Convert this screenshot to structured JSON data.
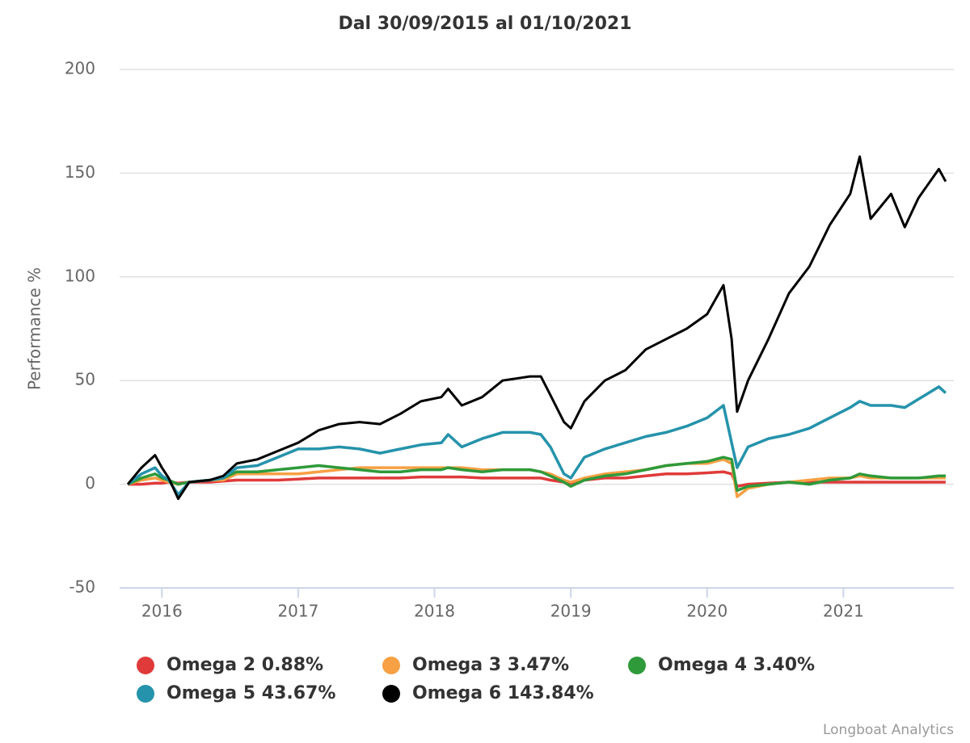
{
  "chart_data": {
    "type": "line",
    "title": "Dal 30/09/2015 al 01/10/2021",
    "y_label": "Performance %",
    "credit": "Longboat Analytics",
    "x": [
      2015.75,
      2015.85,
      2015.95,
      2016.0,
      2016.05,
      2016.12,
      2016.2,
      2016.35,
      2016.45,
      2016.55,
      2016.7,
      2016.85,
      2017.0,
      2017.15,
      2017.3,
      2017.45,
      2017.6,
      2017.75,
      2017.9,
      2018.05,
      2018.1,
      2018.2,
      2018.35,
      2018.5,
      2018.7,
      2018.78,
      2018.85,
      2018.95,
      2019.0,
      2019.1,
      2019.25,
      2019.4,
      2019.55,
      2019.7,
      2019.85,
      2020.0,
      2020.12,
      2020.18,
      2020.22,
      2020.3,
      2020.45,
      2020.6,
      2020.75,
      2020.9,
      2021.05,
      2021.12,
      2021.2,
      2021.35,
      2021.45,
      2021.55,
      2021.7,
      2021.75
    ],
    "series": [
      {
        "name": "Omega 2 0.88%",
        "color": "#e03a3a",
        "values": [
          0,
          0,
          0.5,
          0.5,
          1,
          0.5,
          1,
          1,
          1.5,
          2,
          2,
          2,
          2.5,
          3,
          3,
          3,
          3,
          3,
          3.5,
          3.5,
          3.5,
          3.5,
          3,
          3,
          3,
          3,
          2,
          1,
          0.5,
          2,
          3,
          3,
          4,
          5,
          5,
          5.5,
          6,
          5,
          -1,
          0,
          0.5,
          1,
          1,
          1,
          1,
          1,
          1,
          1,
          1,
          1,
          1,
          1
        ]
      },
      {
        "name": "Omega 3 3.47%",
        "color": "#f7a044",
        "values": [
          0,
          2,
          3,
          2,
          1,
          0,
          1,
          2,
          2,
          5,
          5,
          5,
          5,
          6,
          7,
          8,
          8,
          8,
          8,
          8,
          8,
          8,
          7,
          7,
          7,
          6,
          5,
          2,
          1,
          3,
          5,
          6,
          7,
          9,
          10,
          10,
          12,
          10,
          -6,
          -2,
          0,
          1,
          2,
          3,
          3,
          4,
          3,
          3,
          3,
          3,
          3,
          3
        ]
      },
      {
        "name": "Omega 4 3.40%",
        "color": "#2e9a3a",
        "values": [
          0,
          3,
          5,
          3,
          2,
          0,
          1,
          2,
          3,
          6,
          6,
          7,
          8,
          9,
          8,
          7,
          6,
          6,
          7,
          7,
          8,
          7,
          6,
          7,
          7,
          6,
          4,
          1,
          -1,
          2,
          4,
          5,
          7,
          9,
          10,
          11,
          13,
          12,
          -3,
          -1,
          0,
          1,
          0,
          2,
          3,
          5,
          4,
          3,
          3,
          3,
          4,
          4
        ]
      },
      {
        "name": "Omega 5 43.67%",
        "color": "#2593ab",
        "values": [
          0,
          5,
          8,
          4,
          2,
          -5,
          1,
          2,
          3,
          8,
          9,
          13,
          17,
          17,
          18,
          17,
          15,
          17,
          19,
          20,
          24,
          18,
          22,
          25,
          25,
          24,
          18,
          5,
          3,
          13,
          17,
          20,
          23,
          25,
          28,
          32,
          38,
          20,
          8,
          18,
          22,
          24,
          27,
          32,
          37,
          40,
          38,
          38,
          37,
          41,
          47,
          44
        ]
      },
      {
        "name": "Omega 6 143.84%",
        "color": "#000000",
        "values": [
          0,
          8,
          14,
          8,
          3,
          -7,
          1,
          2,
          4,
          10,
          12,
          16,
          20,
          26,
          29,
          30,
          29,
          34,
          40,
          42,
          46,
          38,
          42,
          50,
          52,
          52,
          43,
          30,
          27,
          40,
          50,
          55,
          65,
          70,
          75,
          82,
          96,
          70,
          35,
          50,
          70,
          92,
          105,
          125,
          140,
          158,
          128,
          140,
          124,
          138,
          152,
          146
        ]
      }
    ],
    "xlim": [
      2015.69,
      2021.81
    ],
    "xticks": [
      2016,
      2017,
      2018,
      2019,
      2020,
      2021
    ],
    "ylim": [
      -50,
      200
    ],
    "yticks": [
      -50,
      0,
      50,
      100,
      150,
      200
    ],
    "grid": true
  }
}
